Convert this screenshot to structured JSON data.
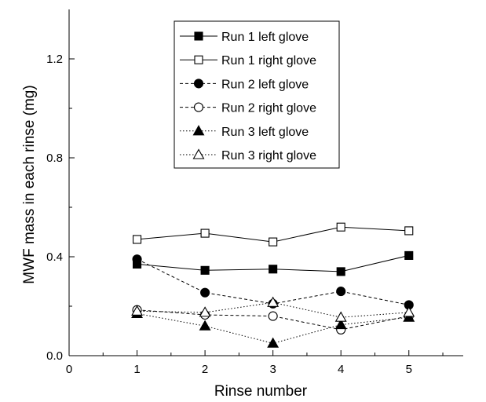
{
  "chart_data": {
    "type": "line",
    "xlabel": "Rinse number",
    "ylabel": "MWF mass in each rinse (mg)",
    "xlim": [
      0,
      5.8
    ],
    "ylim": [
      0,
      1.4
    ],
    "x_ticks": [
      0,
      1,
      2,
      3,
      4,
      5
    ],
    "x_tick_labels": [
      "0",
      "1",
      "2",
      "3",
      "4",
      "5"
    ],
    "y_ticks": [
      0.0,
      0.4,
      0.8,
      1.2
    ],
    "y_tick_labels": [
      "0.0",
      "0.4",
      "0.8",
      "1.2"
    ],
    "grid": false,
    "legend_position": "top-center",
    "x": [
      1,
      2,
      3,
      4,
      5
    ],
    "series": [
      {
        "name": "Run 1 left glove",
        "marker": "square",
        "filled": true,
        "line": "solid",
        "values": [
          0.37,
          0.345,
          0.35,
          0.34,
          0.405
        ]
      },
      {
        "name": "Run 1 right glove",
        "marker": "square",
        "filled": false,
        "line": "solid",
        "values": [
          0.47,
          0.495,
          0.46,
          0.52,
          0.505
        ]
      },
      {
        "name": "Run 2 left glove",
        "marker": "circle",
        "filled": true,
        "line": "dashed",
        "values": [
          0.39,
          0.255,
          0.21,
          0.26,
          0.205
        ]
      },
      {
        "name": "Run 2 right glove",
        "marker": "circle",
        "filled": false,
        "line": "dashed",
        "values": [
          0.185,
          0.165,
          0.16,
          0.105,
          0.16
        ]
      },
      {
        "name": "Run 3 left glove",
        "marker": "triangle",
        "filled": true,
        "line": "dotted",
        "values": [
          0.17,
          0.12,
          0.05,
          0.125,
          0.155
        ]
      },
      {
        "name": "Run 3 right glove",
        "marker": "triangle",
        "filled": false,
        "line": "dotted",
        "values": [
          0.18,
          0.175,
          0.215,
          0.155,
          0.175
        ]
      }
    ]
  }
}
